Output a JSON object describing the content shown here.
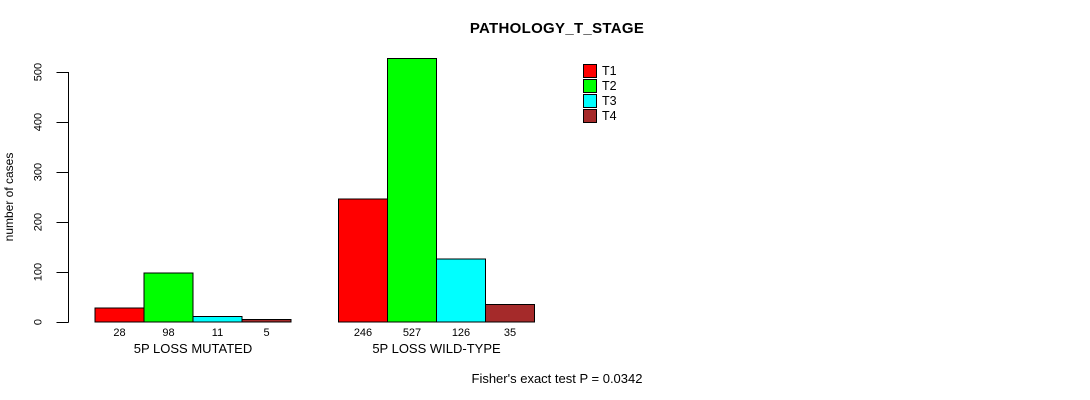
{
  "title": "PATHOLOGY_T_STAGE",
  "footer": "Fisher's exact test P = 0.0342",
  "y_axis": {
    "label": "number of cases",
    "ticks": [
      0,
      100,
      200,
      300,
      400,
      500
    ]
  },
  "legend": {
    "position": "top-right",
    "items": [
      {
        "label": "T1",
        "color": "#ff0000"
      },
      {
        "label": "T2",
        "color": "#00ff00"
      },
      {
        "label": "T3",
        "color": "#00ffff"
      },
      {
        "label": "T4",
        "color": "#a52a2a"
      }
    ]
  },
  "chart_data": {
    "type": "bar",
    "title": "PATHOLOGY_T_STAGE",
    "categories": [
      "5P LOSS MUTATED",
      "5P LOSS WILD-TYPE"
    ],
    "series": [
      {
        "name": "T1",
        "color": "#ff0000",
        "values": [
          28,
          246
        ]
      },
      {
        "name": "T2",
        "color": "#00ff00",
        "values": [
          98,
          527
        ]
      },
      {
        "name": "T3",
        "color": "#00ffff",
        "values": [
          11,
          126
        ]
      },
      {
        "name": "T4",
        "color": "#a52a2a",
        "values": [
          5,
          35
        ]
      }
    ],
    "xlabel": "",
    "ylabel": "number of cases",
    "ylim": [
      0,
      530
    ],
    "yticks": [
      0,
      100,
      200,
      300,
      400,
      500
    ],
    "grid": false,
    "legend_position": "top-right",
    "bar_value_labels_shown": true,
    "annotation": "Fisher's exact test P = 0.0342"
  }
}
